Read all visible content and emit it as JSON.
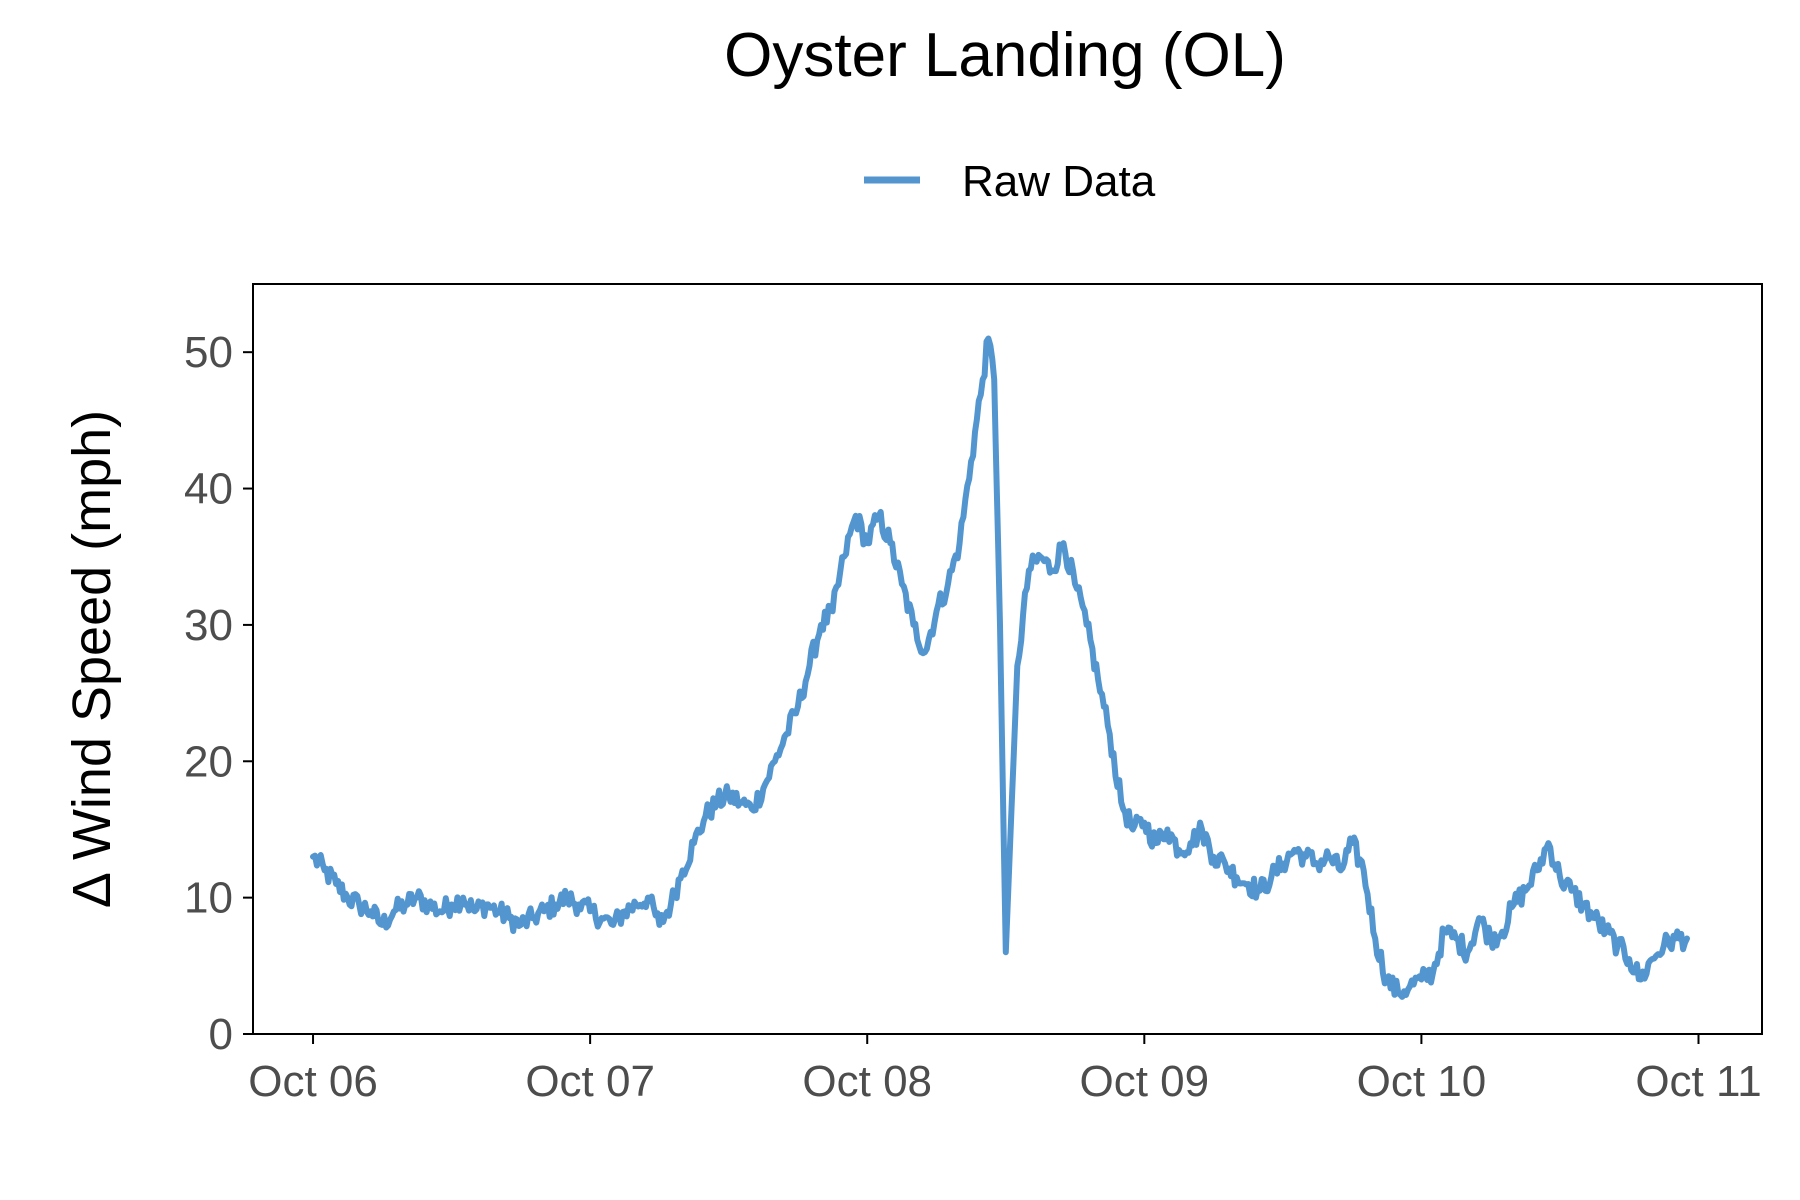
{
  "chart_data": {
    "type": "line",
    "title": "Oyster Landing (OL)",
    "xlabel": "",
    "ylabel": "Δ Wind Speed (mph)",
    "x_tick_labels": [
      "Oct 06",
      "Oct 07",
      "Oct 08",
      "Oct 09",
      "Oct 10",
      "Oct 11"
    ],
    "y_ticks": [
      0,
      10,
      20,
      30,
      40,
      50
    ],
    "xlim": [
      "Oct 05 18:48",
      "Oct 11 05:30"
    ],
    "ylim": [
      0,
      55
    ],
    "grid": false,
    "legend": {
      "position": "top",
      "entries": [
        "Raw Data"
      ]
    },
    "colors": {
      "series": "#5396cf",
      "axis": "#000000",
      "tick_label": "#4d4d4d"
    },
    "series": [
      {
        "name": "Raw Data",
        "x": [
          "Oct 06 00:00",
          "Oct 06 01:00",
          "Oct 06 02:00",
          "Oct 06 03:00",
          "Oct 06 04:00",
          "Oct 06 05:00",
          "Oct 06 06:00",
          "Oct 06 07:00",
          "Oct 06 08:00",
          "Oct 06 09:00",
          "Oct 06 10:00",
          "Oct 06 11:00",
          "Oct 06 12:00",
          "Oct 06 13:00",
          "Oct 06 14:00",
          "Oct 06 15:00",
          "Oct 06 16:00",
          "Oct 06 17:00",
          "Oct 06 18:00",
          "Oct 06 19:00",
          "Oct 06 20:00",
          "Oct 06 21:00",
          "Oct 06 22:00",
          "Oct 06 23:00",
          "Oct 07 00:00",
          "Oct 07 01:00",
          "Oct 07 02:00",
          "Oct 07 03:00",
          "Oct 07 04:00",
          "Oct 07 05:00",
          "Oct 07 06:00",
          "Oct 07 07:00",
          "Oct 07 08:00",
          "Oct 07 09:00",
          "Oct 07 10:00",
          "Oct 07 11:00",
          "Oct 07 12:00",
          "Oct 07 13:00",
          "Oct 07 14:00",
          "Oct 07 15:00",
          "Oct 07 16:00",
          "Oct 07 17:00",
          "Oct 07 18:00",
          "Oct 07 19:00",
          "Oct 07 20:00",
          "Oct 07 21:00",
          "Oct 07 22:00",
          "Oct 07 23:00",
          "Oct 08 00:00",
          "Oct 08 01:00",
          "Oct 08 02:00",
          "Oct 08 03:00",
          "Oct 08 04:00",
          "Oct 08 05:00",
          "Oct 08 06:00",
          "Oct 08 07:00",
          "Oct 08 08:00",
          "Oct 08 09:00",
          "Oct 08 10:00",
          "Oct 08 10:30",
          "Oct 08 11:00",
          "Oct 08 11:30",
          "Oct 08 12:00",
          "Oct 08 13:00",
          "Oct 08 14:00",
          "Oct 08 15:00",
          "Oct 08 16:00",
          "Oct 08 17:00",
          "Oct 08 18:00",
          "Oct 08 19:00",
          "Oct 08 20:00",
          "Oct 08 21:00",
          "Oct 08 22:00",
          "Oct 08 23:00",
          "Oct 09 00:00",
          "Oct 09 01:00",
          "Oct 09 02:00",
          "Oct 09 03:00",
          "Oct 09 04:00",
          "Oct 09 05:00",
          "Oct 09 06:00",
          "Oct 09 07:00",
          "Oct 09 08:00",
          "Oct 09 09:00",
          "Oct 09 10:00",
          "Oct 09 11:00",
          "Oct 09 12:00",
          "Oct 09 13:00",
          "Oct 09 14:00",
          "Oct 09 15:00",
          "Oct 09 16:00",
          "Oct 09 17:00",
          "Oct 09 18:00",
          "Oct 09 19:00",
          "Oct 09 20:00",
          "Oct 09 21:00",
          "Oct 09 22:00",
          "Oct 09 23:00",
          "Oct 10 00:00",
          "Oct 10 01:00",
          "Oct 10 02:00",
          "Oct 10 03:00",
          "Oct 10 04:00",
          "Oct 10 05:00",
          "Oct 10 06:00",
          "Oct 10 07:00",
          "Oct 10 08:00",
          "Oct 10 09:00",
          "Oct 10 10:00",
          "Oct 10 11:00",
          "Oct 10 12:00",
          "Oct 10 13:00",
          "Oct 10 14:00",
          "Oct 10 15:00",
          "Oct 10 16:00",
          "Oct 10 17:00",
          "Oct 10 18:00",
          "Oct 10 19:00",
          "Oct 10 20:00",
          "Oct 10 21:00",
          "Oct 10 22:00",
          "Oct 10 23:00"
        ],
        "values": [
          13.0,
          12.0,
          11.0,
          10.0,
          9.5,
          9.0,
          8.0,
          9.0,
          9.5,
          10.0,
          9.5,
          9.0,
          9.5,
          10.0,
          9.0,
          9.5,
          9.0,
          8.5,
          8.0,
          8.5,
          9.0,
          9.5,
          10.0,
          9.5,
          9.0,
          8.5,
          8.0,
          9.0,
          9.5,
          10.0,
          8.0,
          9.5,
          12.0,
          14.0,
          16.0,
          17.0,
          17.5,
          17.0,
          16.5,
          18.0,
          20.0,
          22.0,
          24.0,
          27.0,
          30.0,
          31.0,
          35.0,
          38.0,
          36.0,
          38.0,
          36.0,
          33.0,
          30.0,
          28.0,
          31.0,
          33.0,
          36.0,
          42.0,
          48.0,
          51.0,
          48.0,
          30.0,
          6.0,
          27.0,
          34.0,
          35.0,
          34.0,
          36.0,
          33.0,
          30.0,
          26.0,
          22.0,
          17.0,
          15.0,
          15.5,
          14.0,
          15.0,
          13.5,
          14.0,
          15.0,
          13.0,
          12.5,
          11.5,
          11.0,
          10.5,
          11.5,
          12.5,
          13.5,
          13.0,
          12.5,
          13.0,
          12.0,
          14.0,
          12.0,
          7.0,
          4.0,
          3.0,
          3.5,
          4.0,
          4.5,
          7.5,
          7.0,
          6.0,
          8.5,
          7.0,
          7.5,
          9.5,
          10.5,
          12.0,
          14.0,
          11.5,
          10.5,
          9.5,
          8.5,
          7.5,
          6.5,
          5.5,
          4.0,
          5.5,
          6.5,
          7.0,
          7.0
        ]
      }
    ]
  }
}
